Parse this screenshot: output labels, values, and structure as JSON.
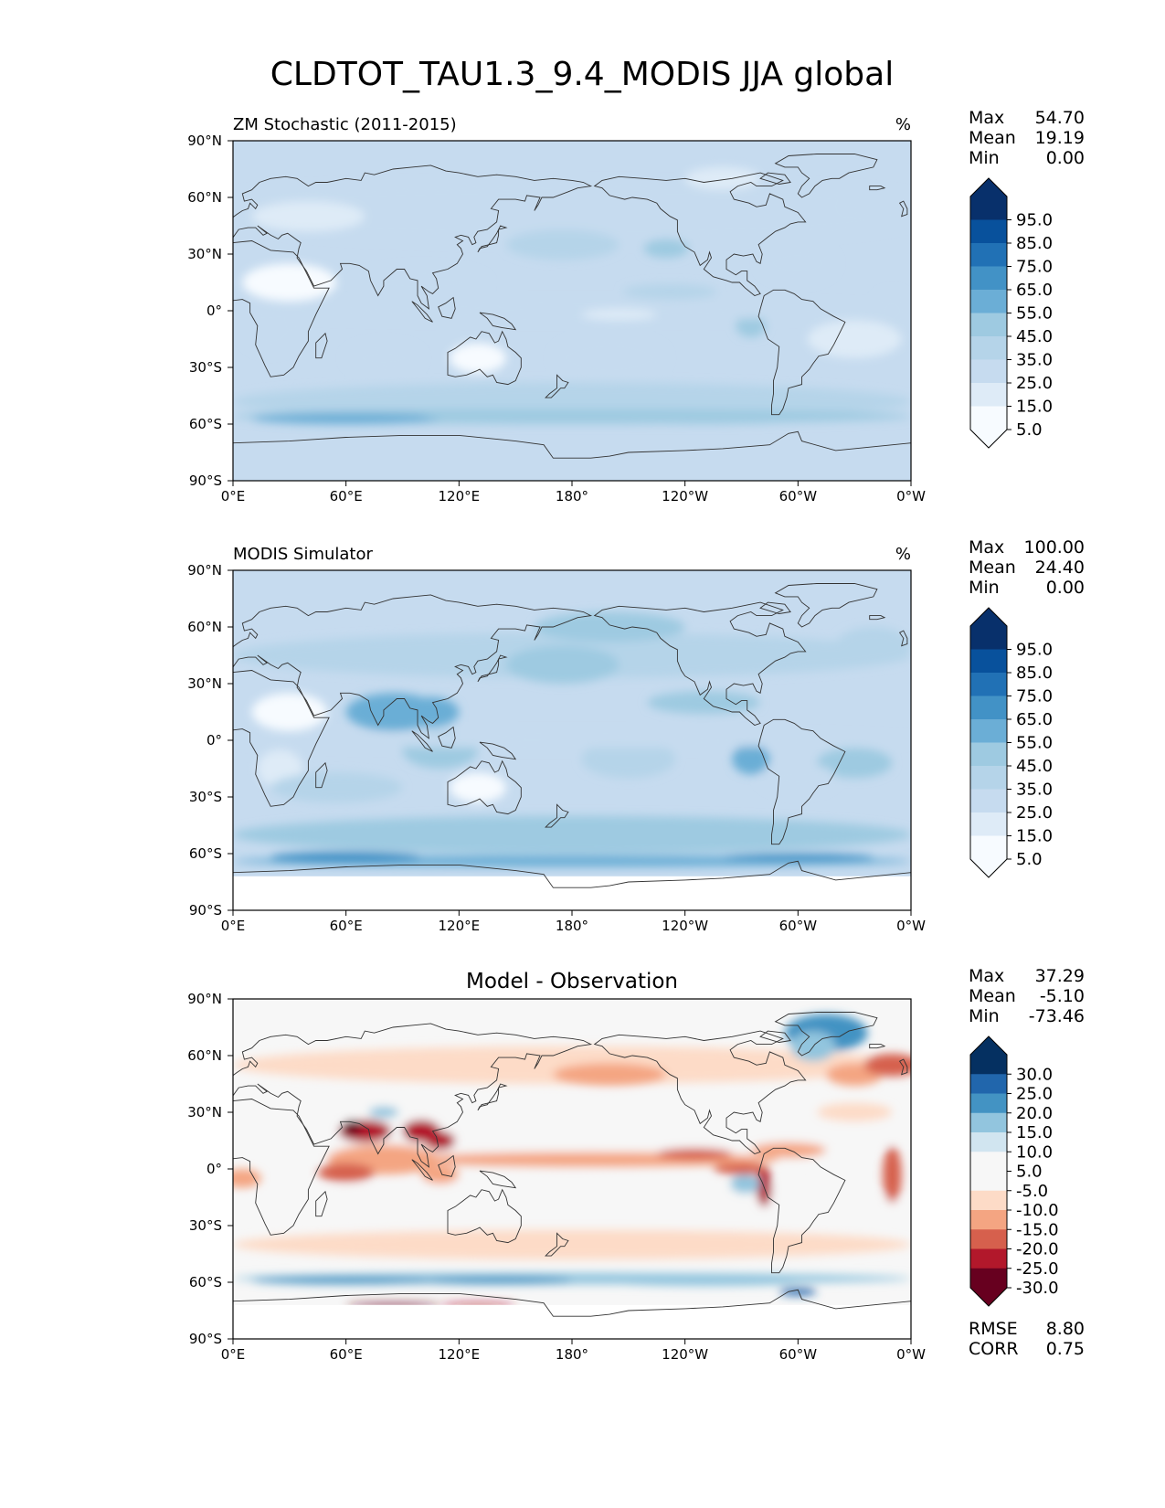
{
  "figure": {
    "title": "CLDTOT_TAU1.3_9.4_MODIS JJA global"
  },
  "colors": {
    "blues": [
      "#f7fbff",
      "#deebf7",
      "#c6dbef",
      "#b5d4e9",
      "#9ecae1",
      "#6baed6",
      "#4292c6",
      "#2171b5",
      "#08519c",
      "#08306b"
    ],
    "diverging": [
      "#67001f",
      "#b2182b",
      "#d6604d",
      "#f4a582",
      "#fddbc7",
      "#f7f7f7",
      "#f7f7f7",
      "#d1e5f0",
      "#92c5de",
      "#4393c3",
      "#2166ac",
      "#053061"
    ],
    "coastline": "#333333"
  },
  "chart_data": [
    {
      "type": "heatmap",
      "title": "ZM Stochastic (2011-2015)",
      "units": "%",
      "stats": [
        {
          "label": "Max",
          "value": "54.70"
        },
        {
          "label": "Mean",
          "value": "19.19"
        },
        {
          "label": "Min",
          "value": "0.00"
        }
      ],
      "colorbar": {
        "ticks": [
          "95.0",
          "85.0",
          "75.0",
          "65.0",
          "55.0",
          "45.0",
          "35.0",
          "25.0",
          "15.0",
          "5.0"
        ],
        "extend": "both"
      },
      "xticks": [
        "0°E",
        "60°E",
        "120°E",
        "180°",
        "120°W",
        "60°W",
        "0°W"
      ],
      "yticks": [
        "90°N",
        "60°N",
        "30°N",
        "0°",
        "30°S",
        "60°S",
        "90°S"
      ],
      "xlim": [
        0,
        360
      ],
      "ylim": [
        -90,
        90
      ]
    },
    {
      "type": "heatmap",
      "title": "MODIS Simulator",
      "units": "%",
      "stats": [
        {
          "label": "Max",
          "value": "100.00"
        },
        {
          "label": "Mean",
          "value": "24.40"
        },
        {
          "label": "Min",
          "value": "0.00"
        }
      ],
      "colorbar": {
        "ticks": [
          "95.0",
          "85.0",
          "75.0",
          "65.0",
          "55.0",
          "45.0",
          "35.0",
          "25.0",
          "15.0",
          "5.0"
        ],
        "extend": "both"
      },
      "xticks": [
        "0°E",
        "60°E",
        "120°E",
        "180°",
        "120°W",
        "60°W",
        "0°W"
      ],
      "yticks": [
        "90°N",
        "60°N",
        "30°N",
        "0°",
        "30°S",
        "60°S",
        "90°S"
      ],
      "xlim": [
        0,
        360
      ],
      "ylim": [
        -90,
        90
      ]
    },
    {
      "type": "heatmap",
      "title": "Model - Observation",
      "units": "",
      "stats": [
        {
          "label": "Max",
          "value": "37.29"
        },
        {
          "label": "Mean",
          "value": "-5.10"
        },
        {
          "label": "Min",
          "value": "-73.46"
        }
      ],
      "extra_stats": [
        {
          "label": "RMSE",
          "value": "8.80"
        },
        {
          "label": "CORR",
          "value": "0.75"
        }
      ],
      "colorbar": {
        "ticks": [
          "30.0",
          "25.0",
          "20.0",
          "15.0",
          "10.0",
          "5.0",
          "-5.0",
          "-10.0",
          "-15.0",
          "-20.0",
          "-25.0",
          "-30.0"
        ],
        "extend": "both"
      },
      "xticks": [
        "0°E",
        "60°E",
        "120°E",
        "180°",
        "120°W",
        "60°W",
        "0°W"
      ],
      "yticks": [
        "90°N",
        "60°N",
        "30°N",
        "0°",
        "30°S",
        "60°S",
        "90°S"
      ],
      "xlim": [
        0,
        360
      ],
      "ylim": [
        -90,
        90
      ]
    }
  ]
}
